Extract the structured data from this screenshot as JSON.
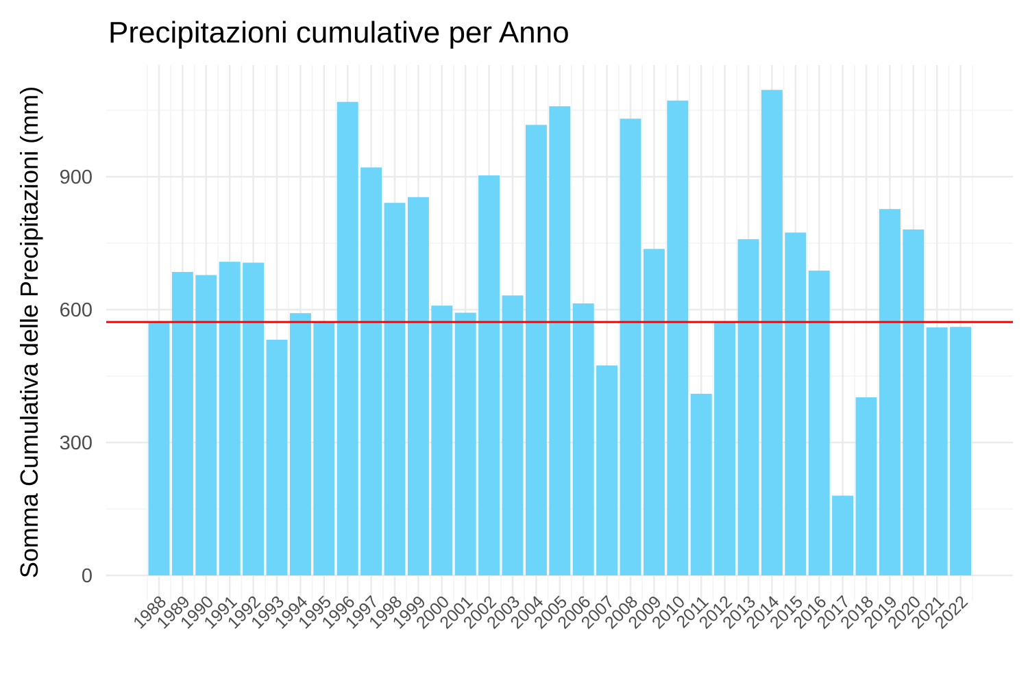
{
  "chart_data": {
    "type": "bar",
    "title": "Precipitazioni cumulative per Anno",
    "xlabel": "",
    "ylabel": "Somma Cumulativa delle Precipitazioni (mm)",
    "categories": [
      "1988",
      "1989",
      "1990",
      "1991",
      "1992",
      "1993",
      "1994",
      "1995",
      "1996",
      "1997",
      "1998",
      "1999",
      "2000",
      "2001",
      "2002",
      "2003",
      "2004",
      "2005",
      "2006",
      "2007",
      "2008",
      "2009",
      "2010",
      "2011",
      "2012",
      "2013",
      "2014",
      "2015",
      "2016",
      "2017",
      "2018",
      "2019",
      "2020",
      "2021",
      "2022"
    ],
    "values": [
      570,
      685,
      678,
      708,
      706,
      532,
      592,
      570,
      1069,
      921,
      841,
      854,
      609,
      593,
      903,
      632,
      1017,
      1059,
      614,
      474,
      1031,
      737,
      1072,
      410,
      570,
      759,
      1096,
      774,
      688,
      180,
      402,
      827,
      781,
      560,
      561
    ],
    "reference_line": {
      "value": 572,
      "color": "#ff0000"
    },
    "ylim": [
      0,
      1160
    ],
    "yticks": [
      0,
      300,
      600,
      900
    ],
    "grid": true,
    "legend": "none",
    "bar_color": "#6dd5fa"
  }
}
